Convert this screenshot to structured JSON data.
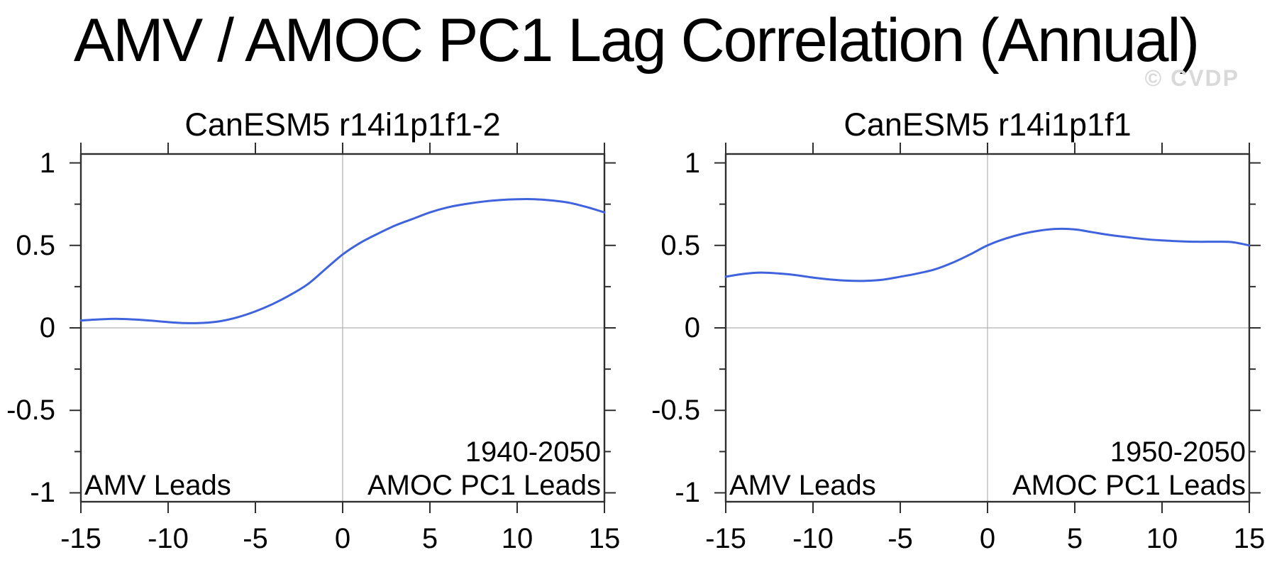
{
  "page_title": "AMV / AMOC PC1 Lag Correlation (Annual)",
  "watermark": "© CVDP",
  "colors": {
    "curve": "#3f63dc",
    "frame": "#2f2f2f",
    "reference_line": "#b0b0b0",
    "text": "#000000",
    "watermark": "#d9d9d9",
    "background": "#ffffff"
  },
  "axes": {
    "xlim": [
      -15,
      15
    ],
    "ylim": [
      -1.054,
      1.054
    ],
    "x_major_ticks": [
      -15,
      -10,
      -5,
      0,
      5,
      10,
      15
    ],
    "x_tick_labels": [
      "-15",
      "-10",
      "-5",
      "0",
      "5",
      "10",
      "15"
    ],
    "y_major_ticks": [
      1,
      0.5,
      0,
      -0.5,
      -1
    ],
    "y_tick_labels": [
      "1",
      "0.5",
      "0",
      "-0.5",
      "-1"
    ],
    "y_minor_ticks": [
      0.75,
      0.25,
      -0.25,
      -0.75
    ],
    "reference_lines": {
      "vertical_at_x": 0,
      "horizontal_at_y": 0
    },
    "grid": "off",
    "legend": "none"
  },
  "chart_data": [
    {
      "type": "line",
      "title": "CanESM5 r14i1p1f1-2",
      "period": "1940-2050",
      "left_label": "AMV Leads",
      "right_label": "AMOC PC1 Leads",
      "xlabel": "",
      "ylabel": "",
      "x": [
        -15,
        -14,
        -13,
        -12,
        -11,
        -10,
        -9,
        -8,
        -7,
        -6,
        -5,
        -4,
        -3,
        -2,
        -1,
        0,
        1,
        2,
        3,
        4,
        5,
        6,
        7,
        8,
        9,
        10,
        11,
        12,
        13,
        14,
        15
      ],
      "values": [
        0.045,
        0.051,
        0.055,
        0.051,
        0.044,
        0.035,
        0.029,
        0.03,
        0.041,
        0.065,
        0.1,
        0.145,
        0.2,
        0.265,
        0.355,
        0.445,
        0.515,
        0.57,
        0.62,
        0.66,
        0.7,
        0.73,
        0.75,
        0.765,
        0.775,
        0.78,
        0.78,
        0.772,
        0.758,
        0.732,
        0.7
      ]
    },
    {
      "type": "line",
      "title": "CanESM5 r14i1p1f1",
      "period": "1950-2050",
      "left_label": "AMV Leads",
      "right_label": "AMOC PC1 Leads",
      "xlabel": "",
      "ylabel": "",
      "x": [
        -15,
        -14,
        -13,
        -12,
        -11,
        -10,
        -9,
        -8,
        -7,
        -6,
        -5,
        -4,
        -3,
        -2,
        -1,
        0,
        1,
        2,
        3,
        4,
        5,
        6,
        7,
        8,
        9,
        10,
        11,
        12,
        13,
        14,
        15
      ],
      "values": [
        0.31,
        0.327,
        0.335,
        0.33,
        0.32,
        0.305,
        0.293,
        0.286,
        0.285,
        0.292,
        0.31,
        0.33,
        0.355,
        0.395,
        0.445,
        0.5,
        0.54,
        0.57,
        0.59,
        0.6,
        0.597,
        0.58,
        0.563,
        0.55,
        0.538,
        0.53,
        0.525,
        0.522,
        0.522,
        0.52,
        0.5
      ]
    }
  ]
}
